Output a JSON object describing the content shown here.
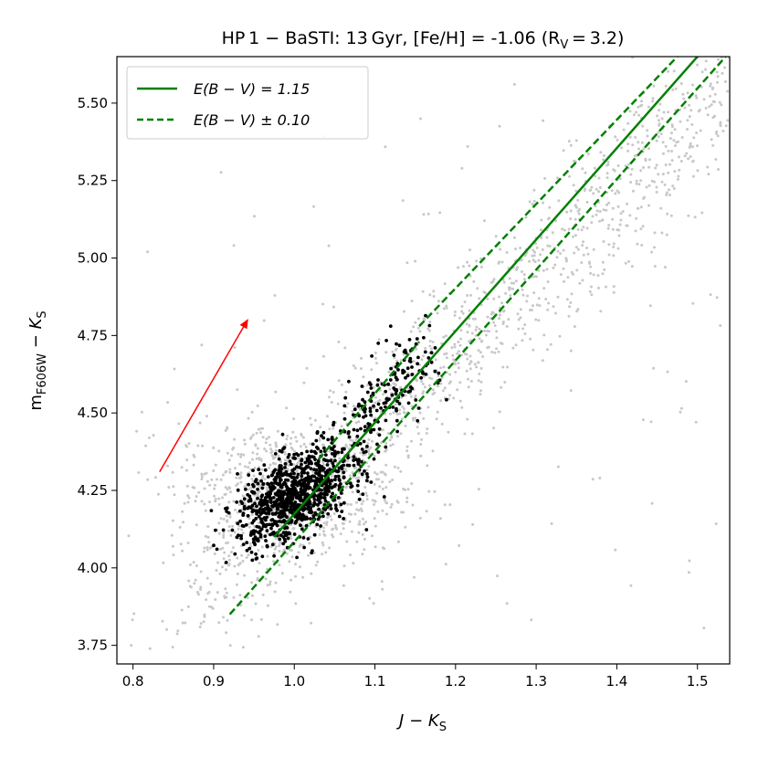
{
  "chart_data": {
    "type": "scatter",
    "title": "HP 1 − BaSTI: 13 Gyr, [Fe/H] = -1.06 (R",
    "title_sub": "V",
    "title_tail": " = 3.2)",
    "xlabel": "J − K",
    "xlabel_sub": "S",
    "ylabel_main": "m",
    "ylabel_sub": "F606W",
    "ylabel_mid": " − K",
    "ylabel_sub2": "S",
    "xlim": [
      0.78,
      1.54
    ],
    "ylim": [
      3.69,
      5.65
    ],
    "x_ticks": [
      0.8,
      0.9,
      1.0,
      1.1,
      1.2,
      1.3,
      1.4,
      1.5
    ],
    "y_ticks": [
      3.75,
      4.0,
      4.25,
      4.5,
      4.75,
      5.0,
      5.25,
      5.5
    ],
    "x_tick_labels": [
      "0.8",
      "0.9",
      "1.0",
      "1.1",
      "1.2",
      "1.3",
      "1.4",
      "1.5"
    ],
    "y_tick_labels": [
      "3.75",
      "4.00",
      "4.25",
      "4.50",
      "4.75",
      "5.00",
      "5.25",
      "5.50"
    ],
    "grid": false,
    "legend_position": "top-left",
    "legend": [
      {
        "label": "E(B − V) = 1.15",
        "style": "solid",
        "color": "#008000"
      },
      {
        "label": "E(B − V) ± 0.10",
        "style": "dashed",
        "color": "#008000"
      }
    ],
    "series": [
      {
        "style": "solid",
        "color": "#008000",
        "x": [
          0.975,
          1.5
        ],
        "y": [
          4.1,
          5.65
        ]
      },
      {
        "style": "dashed",
        "color": "#008000",
        "x": [
          1.03,
          1.155
        ],
        "y": [
          4.35,
          4.73
        ]
      },
      {
        "style": "dashed",
        "color": "#008000",
        "x": [
          1.155,
          1.475
        ],
        "y": [
          4.78,
          5.65
        ]
      },
      {
        "style": "dashed",
        "color": "#008000",
        "x": [
          0.92,
          1.535
        ],
        "y": [
          3.85,
          5.65
        ]
      }
    ],
    "reddening_vector": {
      "color": "#ff0000",
      "x": [
        0.833,
        0.942
      ],
      "y": [
        4.31,
        4.8
      ]
    },
    "scatter_groups": [
      {
        "name": "field",
        "color": "#c8c8c8"
      },
      {
        "name": "members",
        "color": "#000000"
      }
    ]
  }
}
